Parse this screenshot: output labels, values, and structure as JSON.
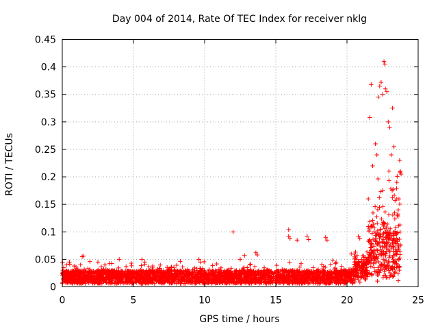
{
  "chart_data": {
    "type": "scatter",
    "title": "Day 004 of 2014, Rate Of TEC Index for receiver nklg",
    "xlabel": "GPS time / hours",
    "ylabel": "ROTI / TECUs",
    "xlim": [
      0,
      25
    ],
    "ylim": [
      0,
      0.45
    ],
    "xticks": [
      0,
      5,
      10,
      15,
      20,
      25
    ],
    "xtick_labels": [
      "0",
      "5",
      "10",
      "15",
      "20",
      "25"
    ],
    "yticks": [
      0,
      0.05,
      0.1,
      0.15,
      0.2,
      0.25,
      0.3,
      0.35,
      0.4,
      0.45
    ],
    "ytick_labels": [
      "0",
      "0.05",
      "0.1",
      "0.15",
      "0.2",
      "0.25",
      "0.3",
      "0.35",
      "0.4",
      "0.45"
    ],
    "grid": true,
    "marker": "+",
    "color": "#ff0000",
    "series": [
      {
        "name": "ROTI",
        "points": [
          [
            0.1,
            0.035
          ],
          [
            0.3,
            0.04
          ],
          [
            0.5,
            0.045
          ],
          [
            1.4,
            0.055
          ],
          [
            1.5,
            0.056
          ],
          [
            2.5,
            0.045
          ],
          [
            3.0,
            0.04
          ],
          [
            4.0,
            0.05
          ],
          [
            5.6,
            0.05
          ],
          [
            5.8,
            0.045
          ],
          [
            9.6,
            0.05
          ],
          [
            9.7,
            0.045
          ],
          [
            12.0,
            0.1
          ],
          [
            12.5,
            0.05
          ],
          [
            12.8,
            0.057
          ],
          [
            13.6,
            0.062
          ],
          [
            13.7,
            0.058
          ],
          [
            15.9,
            0.104
          ],
          [
            15.9,
            0.092
          ],
          [
            16.0,
            0.088
          ],
          [
            16.5,
            0.085
          ],
          [
            17.2,
            0.092
          ],
          [
            17.3,
            0.086
          ],
          [
            18.5,
            0.09
          ],
          [
            18.6,
            0.085
          ],
          [
            19.0,
            0.048
          ],
          [
            20.3,
            0.06
          ],
          [
            20.8,
            0.092
          ],
          [
            20.9,
            0.088
          ],
          [
            21.5,
            0.16
          ],
          [
            21.6,
            0.308
          ],
          [
            21.7,
            0.368
          ],
          [
            21.8,
            0.22
          ],
          [
            22.0,
            0.26
          ],
          [
            22.1,
            0.24
          ],
          [
            22.2,
            0.345
          ],
          [
            22.3,
            0.365
          ],
          [
            22.4,
            0.372
          ],
          [
            22.5,
            0.35
          ],
          [
            22.6,
            0.41
          ],
          [
            22.65,
            0.405
          ],
          [
            22.7,
            0.36
          ],
          [
            22.8,
            0.355
          ],
          [
            22.9,
            0.3
          ],
          [
            23.0,
            0.29
          ],
          [
            23.2,
            0.325
          ],
          [
            23.1,
            0.24
          ],
          [
            23.3,
            0.255
          ],
          [
            23.5,
            0.19
          ],
          [
            23.6,
            0.14
          ],
          [
            23.7,
            0.23
          ],
          [
            23.75,
            0.21
          ],
          [
            23.8,
            0.205
          ],
          [
            23.65,
            0.16
          ],
          [
            23.55,
            0.13
          ]
        ]
      }
    ]
  }
}
